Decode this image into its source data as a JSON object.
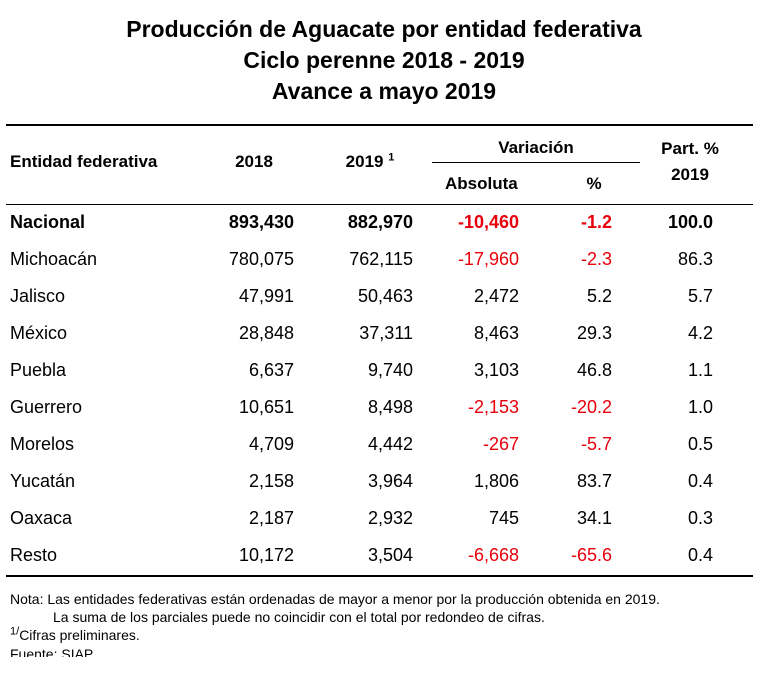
{
  "title": {
    "line1": "Producción de Aguacate por entidad federativa",
    "line2": "Ciclo perenne 2018 - 2019",
    "line3": "Avance a mayo 2019"
  },
  "headers": {
    "entidad": "Entidad federativa",
    "y2018": "2018",
    "y2019": "2019",
    "y2019_sup": "1",
    "variacion": "Variación",
    "absoluta": "Absoluta",
    "pct": "%",
    "part": "Part. %",
    "part_year": "2019"
  },
  "rows": [
    {
      "entidad": "Nacional",
      "y2018": "893,430",
      "y2019": "882,970",
      "abs": "-10,460",
      "pct": "-1.2",
      "part": "100.0"
    },
    {
      "entidad": "Michoacán",
      "y2018": "780,075",
      "y2019": "762,115",
      "abs": "-17,960",
      "pct": "-2.3",
      "part": "86.3"
    },
    {
      "entidad": "Jalisco",
      "y2018": "47,991",
      "y2019": "50,463",
      "abs": "2,472",
      "pct": "5.2",
      "part": "5.7"
    },
    {
      "entidad": "México",
      "y2018": "28,848",
      "y2019": "37,311",
      "abs": "8,463",
      "pct": "29.3",
      "part": "4.2"
    },
    {
      "entidad": "Puebla",
      "y2018": "6,637",
      "y2019": "9,740",
      "abs": "3,103",
      "pct": "46.8",
      "part": "1.1"
    },
    {
      "entidad": "Guerrero",
      "y2018": "10,651",
      "y2019": "8,498",
      "abs": "-2,153",
      "pct": "-20.2",
      "part": "1.0"
    },
    {
      "entidad": "Morelos",
      "y2018": "4,709",
      "y2019": "4,442",
      "abs": "-267",
      "pct": "-5.7",
      "part": "0.5"
    },
    {
      "entidad": "Yucatán",
      "y2018": "2,158",
      "y2019": "3,964",
      "abs": "1,806",
      "pct": "83.7",
      "part": "0.4"
    },
    {
      "entidad": "Oaxaca",
      "y2018": "2,187",
      "y2019": "2,932",
      "abs": "745",
      "pct": "34.1",
      "part": "0.3"
    },
    {
      "entidad": "Resto",
      "y2018": "10,172",
      "y2019": "3,504",
      "abs": "-6,668",
      "pct": "-65.6",
      "part": "0.4"
    }
  ],
  "notes": {
    "line1": "Nota: Las entidades federativas están ordenadas de mayor a menor por la producción obtenida en 2019.",
    "line2": "La suma de los parciales puede no coincidir con el total por redondeo de cifras.",
    "prelim_sup": "1/",
    "prelim": "Cifras preliminares.",
    "fuente": "Fuente: SIAP"
  },
  "colors": {
    "negative": "#e8000b"
  }
}
